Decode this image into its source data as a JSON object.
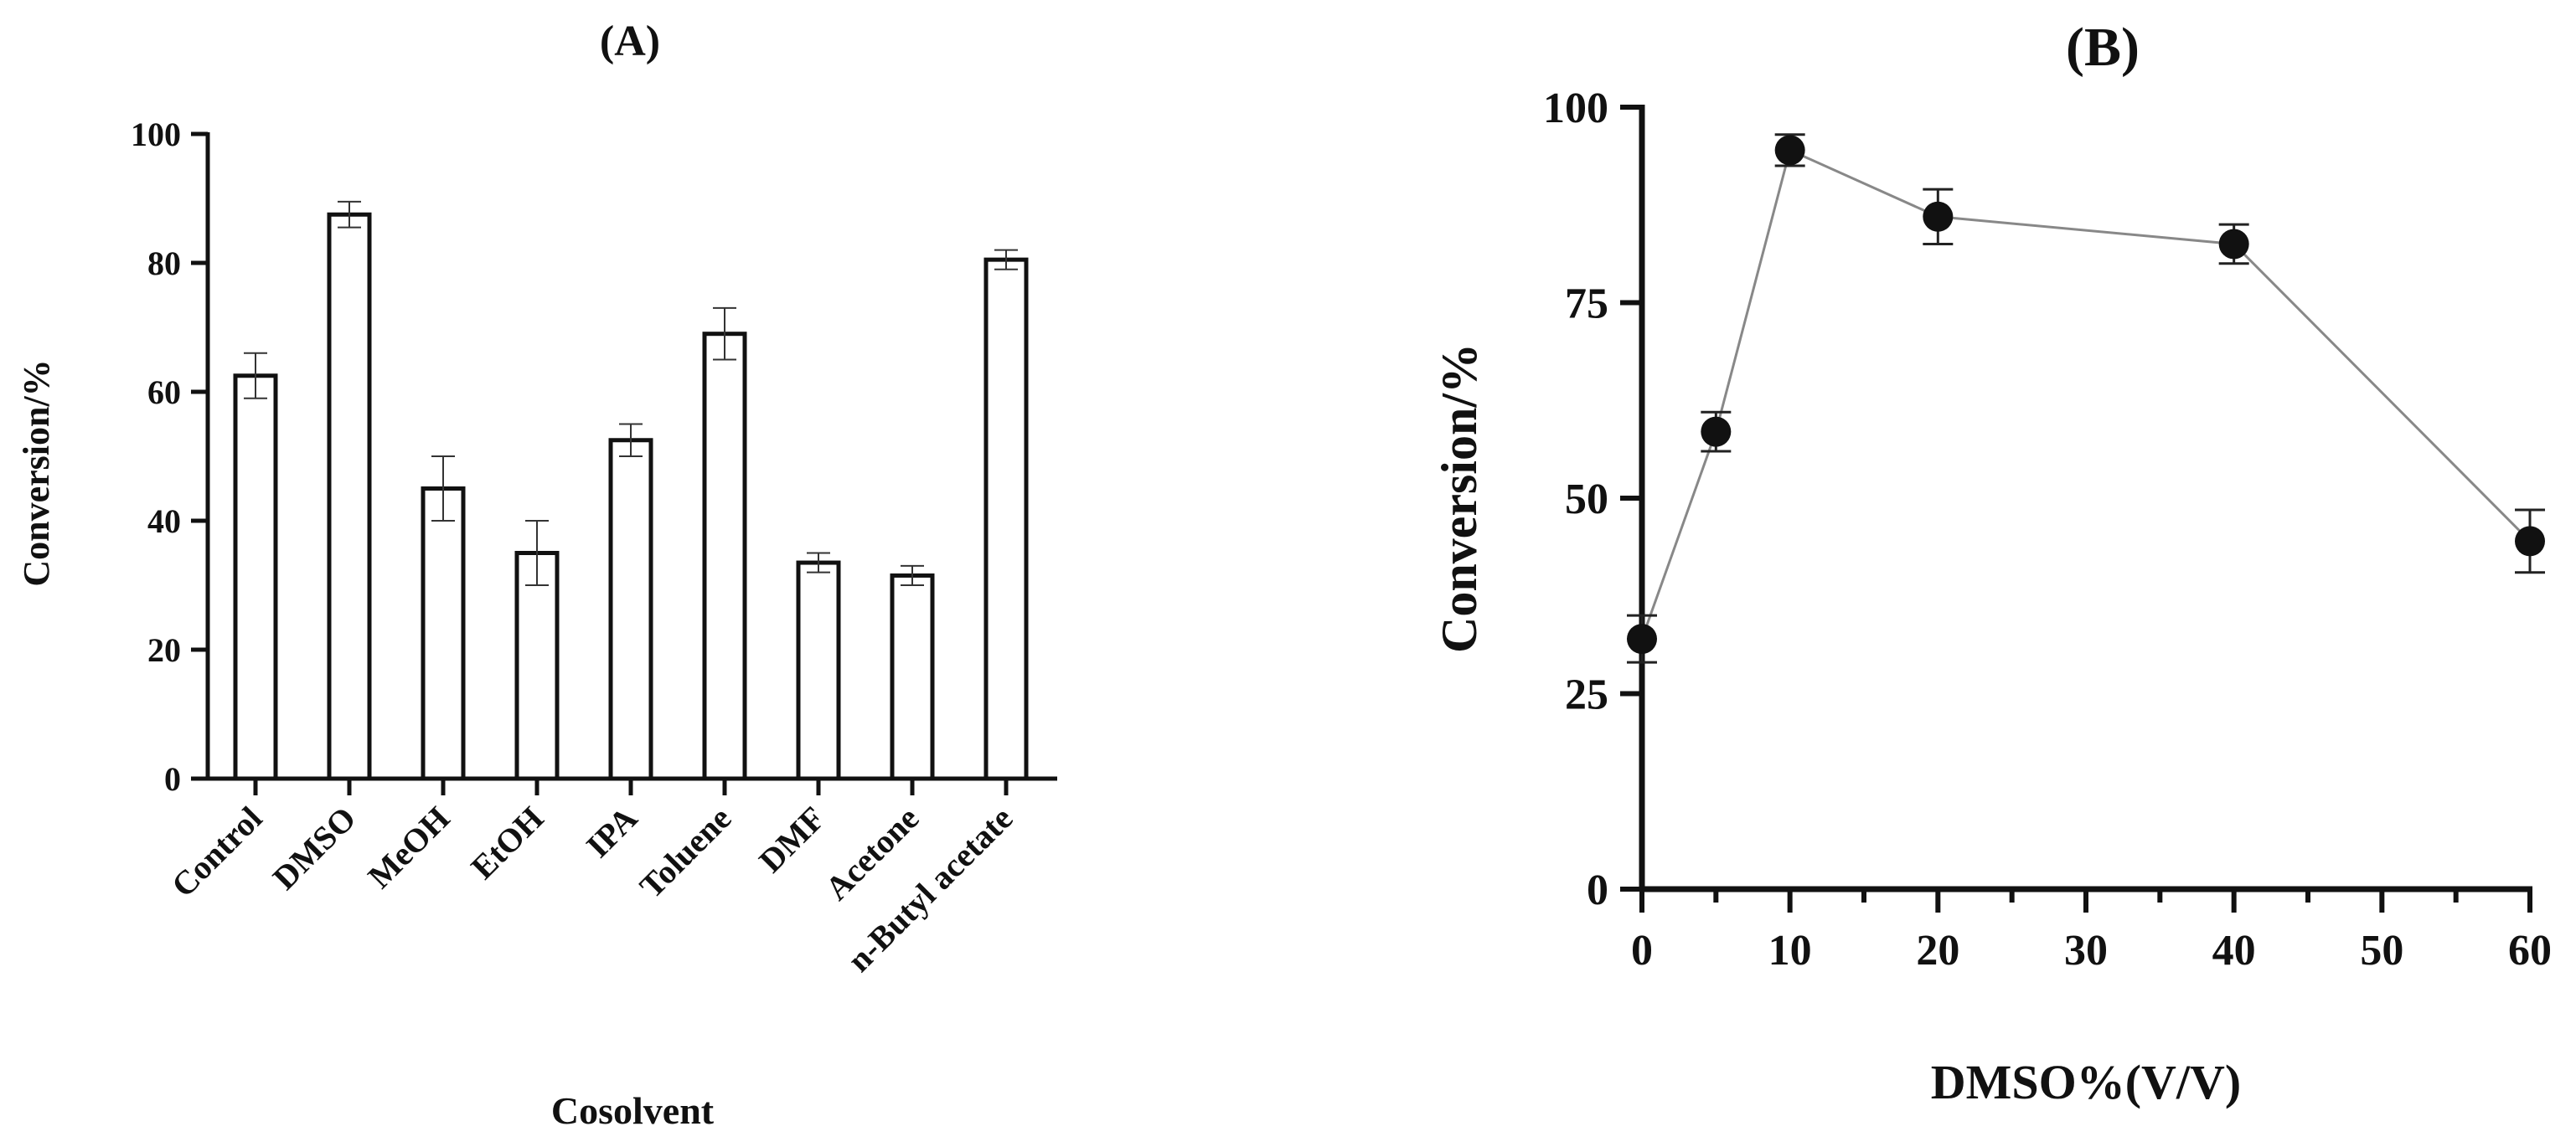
{
  "chart_data": [
    {
      "panel_label": "(A)",
      "type": "bar",
      "title": "",
      "xlabel": "Cosolvent",
      "ylabel": "Conversion/%",
      "ylim": [
        0,
        100
      ],
      "yticks": [
        0,
        20,
        40,
        60,
        80,
        100
      ],
      "categories": [
        "Control",
        "DMSO",
        "MeOH",
        "EtOH",
        "IPA",
        "Toluene",
        "DMF",
        "Acetone",
        "n-Butyl acetate"
      ],
      "values": [
        62.5,
        87.5,
        45,
        35,
        52.5,
        69,
        33.5,
        31.5,
        80.5
      ],
      "errors": [
        3.5,
        2,
        5,
        5,
        2.5,
        4,
        1.5,
        1.5,
        1.5
      ],
      "grid": false,
      "legend": "none",
      "bar_fill": "#ffffff",
      "bar_stroke": "#111111"
    },
    {
      "panel_label": "(B)",
      "type": "line",
      "title": "",
      "xlabel": "DMSO%(V/V)",
      "ylabel": "Conversion/%",
      "xlim": [
        0,
        60
      ],
      "ylim": [
        0,
        100
      ],
      "xticks": [
        0,
        10,
        20,
        30,
        40,
        50,
        60
      ],
      "yticks": [
        0,
        25,
        50,
        75,
        100
      ],
      "x": [
        0,
        5,
        10,
        20,
        40,
        60
      ],
      "y": [
        32,
        58.5,
        94.5,
        86,
        82.5,
        44.5
      ],
      "errors": [
        3,
        2.5,
        2,
        3.5,
        2.5,
        4
      ],
      "grid": false,
      "legend": "none",
      "marker_color": "#111111",
      "line_color": "#888888"
    }
  ]
}
